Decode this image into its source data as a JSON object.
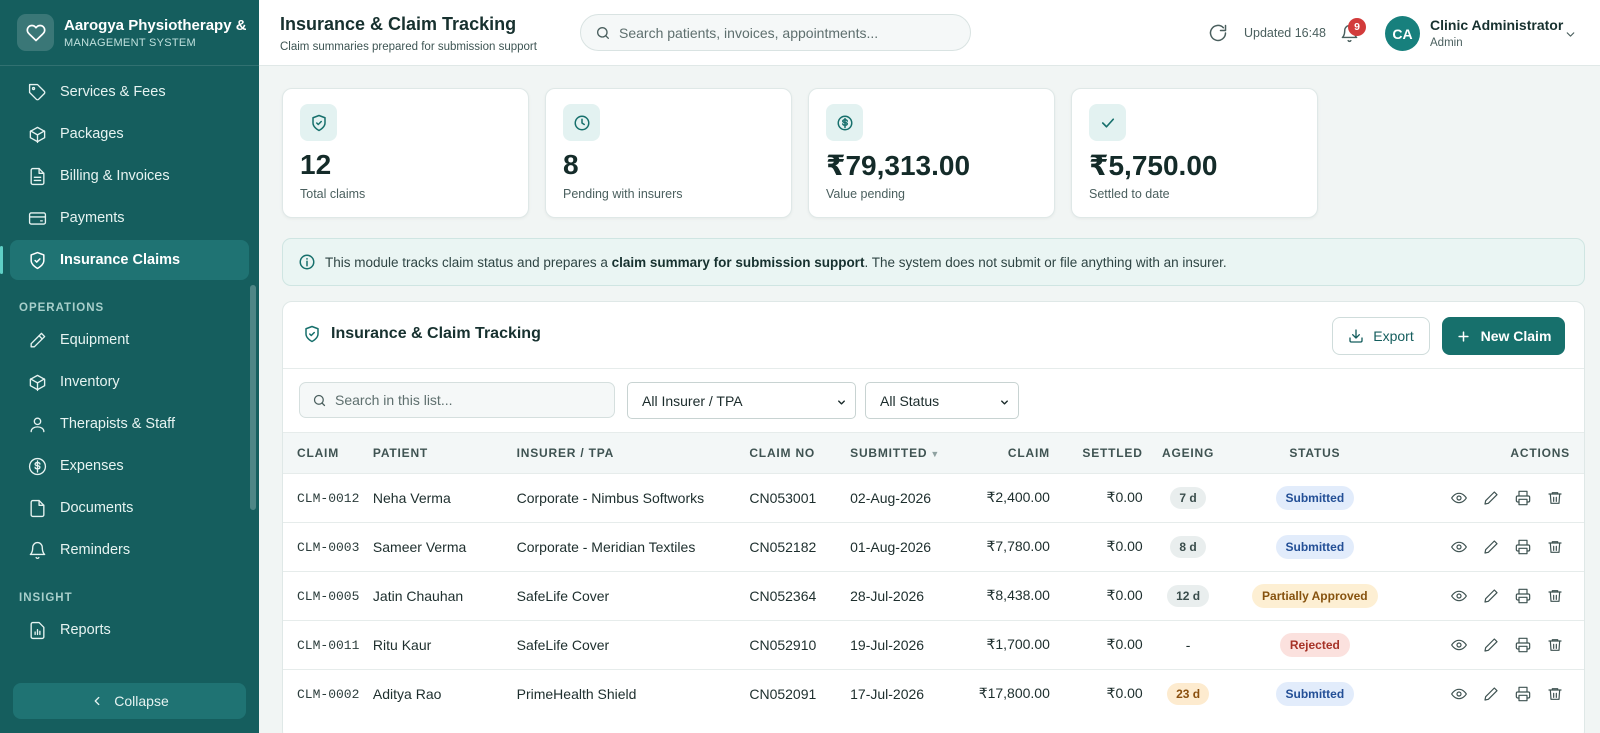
{
  "brand": {
    "name": "Aarogya Physiotherapy & I",
    "subtitle": "MANAGEMENT SYSTEM"
  },
  "sidebar": {
    "items_top": [
      {
        "label": "Services & Fees",
        "icon": "tag-icon"
      },
      {
        "label": "Packages",
        "icon": "box-icon"
      },
      {
        "label": "Billing & Invoices",
        "icon": "file-text-icon"
      },
      {
        "label": "Payments",
        "icon": "wallet-icon"
      },
      {
        "label": "Insurance Claims",
        "icon": "shield-icon",
        "active": true
      }
    ],
    "section_operations": "OPERATIONS",
    "items_operations": [
      {
        "label": "Equipment",
        "icon": "wrench-icon"
      },
      {
        "label": "Inventory",
        "icon": "package-icon"
      },
      {
        "label": "Therapists & Staff",
        "icon": "user-icon"
      },
      {
        "label": "Expenses",
        "icon": "dollar-icon"
      },
      {
        "label": "Documents",
        "icon": "document-icon"
      },
      {
        "label": "Reminders",
        "icon": "bell-icon"
      }
    ],
    "section_insight": "INSIGHT",
    "items_insight": [
      {
        "label": "Reports",
        "icon": "chart-icon"
      }
    ],
    "collapse_label": "Collapse"
  },
  "header": {
    "title": "Insurance & Claim Tracking",
    "subtitle": "Claim summaries prepared for submission support",
    "search_placeholder": "Search patients, invoices, appointments...",
    "updated": "Updated 16:48",
    "notification_count": "9",
    "user": {
      "initials": "CA",
      "name": "Clinic Administrator",
      "role": "Admin"
    }
  },
  "stats": [
    {
      "value": "12",
      "label": "Total claims",
      "icon": "shield-check-icon"
    },
    {
      "value": "8",
      "label": "Pending with insurers",
      "icon": "clock-icon"
    },
    {
      "value": "₹79,313.00",
      "label": "Value pending",
      "icon": "dollar-circle-icon"
    },
    {
      "value": "₹5,750.00",
      "label": "Settled to date",
      "icon": "check-icon"
    }
  ],
  "info": {
    "prefix": "This module tracks claim status and prepares a ",
    "bold": "claim summary for submission support",
    "suffix": ". The system does not submit or file anything with an insurer."
  },
  "panel": {
    "title": "Insurance & Claim Tracking",
    "export_label": "Export",
    "new_label": "New Claim",
    "search_placeholder": "Search in this list...",
    "insurer_filter": "All Insurer / TPA",
    "status_filter": "All Status"
  },
  "table": {
    "headers": {
      "claim": "CLAIM",
      "patient": "PATIENT",
      "insurer": "INSURER / TPA",
      "claim_no": "CLAIM NO",
      "submitted": "SUBMITTED",
      "amount": "CLAIM",
      "settled": "SETTLED",
      "ageing": "AGEING",
      "status": "STATUS",
      "actions": "ACTIONS"
    },
    "rows": [
      {
        "id": "CLM-0012",
        "patient": "Neha Verma",
        "insurer": "Corporate - Nimbus Softworks",
        "claim_no": "CN053001",
        "submitted": "02-Aug-2026",
        "amount": "₹2,400.00",
        "settled": "₹0.00",
        "ageing": "7 d",
        "status": "Submitted"
      },
      {
        "id": "CLM-0003",
        "patient": "Sameer Verma",
        "insurer": "Corporate - Meridian Textiles",
        "claim_no": "CN052182",
        "submitted": "01-Aug-2026",
        "amount": "₹7,780.00",
        "settled": "₹0.00",
        "ageing": "8 d",
        "status": "Submitted"
      },
      {
        "id": "CLM-0005",
        "patient": "Jatin Chauhan",
        "insurer": "SafeLife Cover",
        "claim_no": "CN052364",
        "submitted": "28-Jul-2026",
        "amount": "₹8,438.00",
        "settled": "₹0.00",
        "ageing": "12 d",
        "status": "Partially Approved"
      },
      {
        "id": "CLM-0011",
        "patient": "Ritu Kaur",
        "insurer": "SafeLife Cover",
        "claim_no": "CN052910",
        "submitted": "19-Jul-2026",
        "amount": "₹1,700.00",
        "settled": "₹0.00",
        "ageing": "-",
        "status": "Rejected"
      },
      {
        "id": "CLM-0002",
        "patient": "Aditya Rao",
        "insurer": "PrimeHealth Shield",
        "claim_no": "CN052091",
        "submitted": "17-Jul-2026",
        "amount": "₹17,800.00",
        "settled": "₹0.00",
        "ageing": "23 d",
        "status": "Submitted"
      }
    ]
  },
  "colors": {
    "sidebar": "#155e5e",
    "accent": "#17706c",
    "background": "#f1f5f4"
  }
}
